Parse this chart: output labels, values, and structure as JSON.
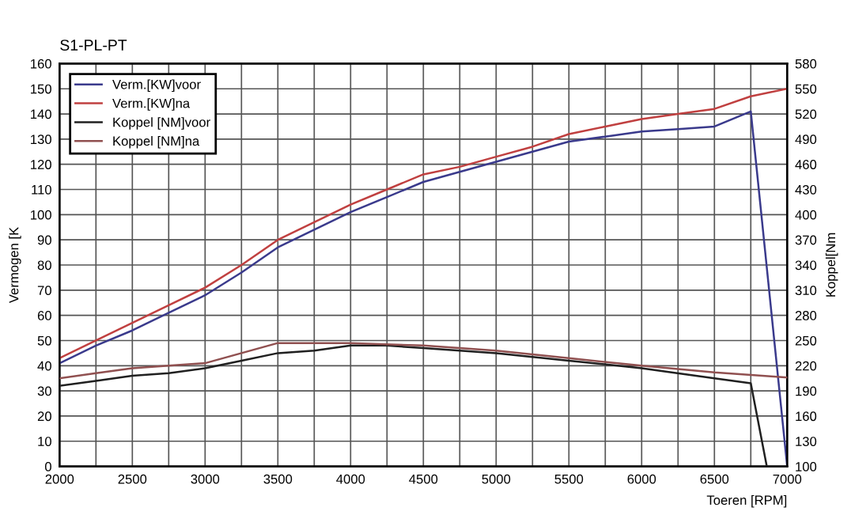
{
  "chart_data": {
    "type": "line",
    "title": "S1-PL-PT",
    "xlabel": "Toeren [RPM]",
    "ylabel": "Vermogen [K",
    "y2label": "Koppel[Nm",
    "xlim": [
      2000,
      7000
    ],
    "xticks": [
      2000,
      {
        "value": 2250,
        "label": null
      },
      2500,
      {
        "value": 2750,
        "label": null
      },
      3000,
      {
        "value": 3250,
        "label": null
      },
      3500,
      {
        "value": 3750,
        "label": null
      },
      4000,
      {
        "value": 4250,
        "label": null
      },
      4500,
      {
        "value": 4750,
        "label": null
      },
      5000,
      {
        "value": 5250,
        "label": null
      },
      5500,
      {
        "value": 5750,
        "label": null
      },
      6000,
      {
        "value": 6250,
        "label": null
      },
      6500,
      {
        "value": 6750,
        "label": null
      },
      7000
    ],
    "ylim": [
      0,
      160
    ],
    "yticks": [
      0,
      10,
      20,
      30,
      40,
      50,
      60,
      70,
      80,
      90,
      100,
      110,
      120,
      130,
      140,
      150,
      160
    ],
    "y2lim": [
      100,
      580
    ],
    "y2ticks": [
      100,
      130,
      160,
      190,
      220,
      250,
      280,
      310,
      340,
      370,
      400,
      430,
      460,
      490,
      520,
      550,
      580
    ],
    "grid": true,
    "legend": "top left",
    "marker": "none",
    "line_style": "solid",
    "series": [
      {
        "name": "Verm.[KW]voor",
        "color": "#3a3a8c",
        "x": [
          2000,
          2250,
          2500,
          2750,
          3000,
          3250,
          3500,
          3750,
          4000,
          4250,
          4500,
          4750,
          5000,
          5250,
          5500,
          5750,
          6000,
          6250,
          6500,
          6750,
          7000
        ],
        "values": [
          41,
          48,
          54,
          61,
          68,
          77,
          87,
          94,
          101,
          107,
          113,
          117,
          121,
          125,
          129,
          131,
          133,
          134,
          135,
          141,
          0
        ]
      },
      {
        "name": "Verm.[KW]na",
        "color": "#c04040",
        "x": [
          2000,
          2250,
          2500,
          2750,
          3000,
          3250,
          3500,
          3750,
          4000,
          4250,
          4500,
          4750,
          5000,
          5250,
          5500,
          5750,
          6000,
          6250,
          6500,
          6750,
          7000
        ],
        "values": [
          43,
          50,
          57,
          64,
          71,
          80,
          90,
          97,
          104,
          110,
          116,
          119,
          123,
          127,
          132,
          135,
          138,
          140,
          142,
          147,
          150
        ]
      },
      {
        "name": "Koppel [NM]voor",
        "color": "#202020",
        "axis": "y2",
        "x": [
          2000,
          2250,
          2500,
          2750,
          3000,
          3250,
          3500,
          3750,
          4000,
          4250,
          4500,
          5000,
          5500,
          6000,
          6500,
          6750,
          6860
        ],
        "values": [
          196,
          202,
          208,
          211,
          217,
          226,
          235,
          238,
          244,
          244,
          241,
          235,
          226,
          217,
          205,
          199,
          100
        ]
      },
      {
        "name": "Koppel [NM]na",
        "color": "#905050",
        "axis": "y2",
        "x": [
          2000,
          2250,
          2500,
          2750,
          3000,
          3250,
          3500,
          4000,
          4500,
          5000,
          5500,
          6000,
          6500,
          7000
        ],
        "values": [
          205,
          211,
          217,
          220,
          223,
          235,
          247,
          247,
          244,
          238,
          229,
          220,
          212,
          206
        ]
      }
    ]
  }
}
